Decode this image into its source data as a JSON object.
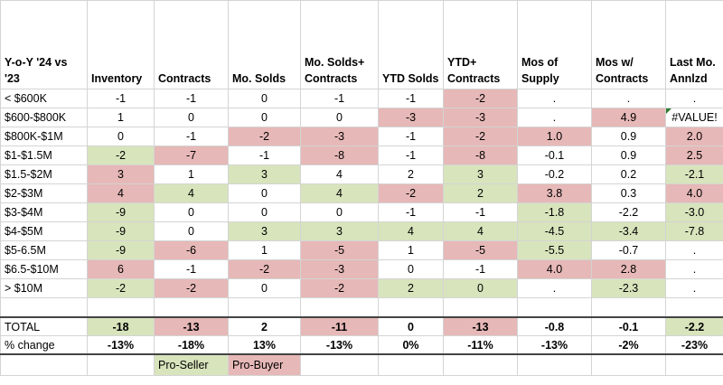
{
  "headers": [
    "Y-o-Y '24 vs '23",
    "Inventory",
    "Contracts",
    "Mo. Solds",
    "Mo. Solds+ Contracts",
    "YTD Solds",
    "YTD+ Contracts",
    "Mos of Supply",
    "Mos w/ Contracts",
    "Last Mo. Annlzd"
  ],
  "colors": {
    "pro_seller": "#d8e4bc",
    "pro_buyer": "#e6b8b7"
  },
  "rows": [
    {
      "label": "< $600K",
      "values": [
        "-1",
        "-1",
        "0",
        "-1",
        "-1",
        "-2",
        ".",
        ".",
        "."
      ],
      "shade": [
        "",
        "",
        "",
        "",
        "",
        "r",
        "",
        "",
        ""
      ]
    },
    {
      "label": "$600-$800K",
      "values": [
        "1",
        "0",
        "0",
        "0",
        "-3",
        "-3",
        ".",
        "4.9",
        "#VALUE!"
      ],
      "shade": [
        "",
        "",
        "",
        "",
        "r",
        "r",
        "",
        "r",
        ""
      ]
    },
    {
      "label": "$800K-$1M",
      "values": [
        "0",
        "-1",
        "-2",
        "-3",
        "-1",
        "-2",
        "1.0",
        "0.9",
        "2.0"
      ],
      "shade": [
        "",
        "",
        "r",
        "r",
        "",
        "r",
        "r",
        "",
        "r"
      ]
    },
    {
      "label": "$1-$1.5M",
      "values": [
        "-2",
        "-7",
        "-1",
        "-8",
        "-1",
        "-8",
        "-0.1",
        "0.9",
        "2.5"
      ],
      "shade": [
        "g",
        "r",
        "",
        "r",
        "",
        "r",
        "",
        "",
        "r"
      ]
    },
    {
      "label": "$1.5-$2M",
      "values": [
        "3",
        "1",
        "3",
        "4",
        "2",
        "3",
        "-0.2",
        "0.2",
        "-2.1"
      ],
      "shade": [
        "r",
        "",
        "g",
        "",
        "",
        "g",
        "",
        "",
        "g"
      ]
    },
    {
      "label": "$2-$3M",
      "values": [
        "4",
        "4",
        "0",
        "4",
        "-2",
        "2",
        "3.8",
        "0.3",
        "4.0"
      ],
      "shade": [
        "r",
        "g",
        "",
        "g",
        "r",
        "g",
        "r",
        "",
        "r"
      ]
    },
    {
      "label": "$3-$4M",
      "values": [
        "-9",
        "0",
        "0",
        "0",
        "-1",
        "-1",
        "-1.8",
        "-2.2",
        "-3.0"
      ],
      "shade": [
        "g",
        "",
        "",
        "",
        "",
        "",
        "g",
        "",
        "g"
      ]
    },
    {
      "label": "$4-$5M",
      "values": [
        "-9",
        "0",
        "3",
        "3",
        "4",
        "4",
        "-4.5",
        "-3.4",
        "-7.8"
      ],
      "shade": [
        "g",
        "",
        "g",
        "g",
        "g",
        "g",
        "g",
        "g",
        "g"
      ]
    },
    {
      "label": "$5-6.5M",
      "values": [
        "-9",
        "-6",
        "1",
        "-5",
        "1",
        "-5",
        "-5.5",
        "-0.7",
        "."
      ],
      "shade": [
        "g",
        "r",
        "",
        "r",
        "",
        "r",
        "g",
        "",
        ""
      ]
    },
    {
      "label": "$6.5-$10M",
      "values": [
        "6",
        "-1",
        "-2",
        "-3",
        "0",
        "-1",
        "4.0",
        "2.8",
        "."
      ],
      "shade": [
        "r",
        "",
        "r",
        "r",
        "",
        "",
        "r",
        "r",
        ""
      ]
    },
    {
      "label": "> $10M",
      "values": [
        "-2",
        "-2",
        "0",
        "-2",
        "2",
        "0",
        ".",
        "-2.3",
        "."
      ],
      "shade": [
        "g",
        "r",
        "",
        "r",
        "g",
        "g",
        "",
        "g",
        ""
      ]
    }
  ],
  "total": {
    "label": "TOTAL",
    "values": [
      "-18",
      "-13",
      "2",
      "-11",
      "0",
      "-13",
      "-0.8",
      "-0.1",
      "-2.2"
    ],
    "shade": [
      "g",
      "r",
      "",
      "r",
      "",
      "r",
      "",
      "",
      "g"
    ]
  },
  "pct": {
    "label": "% change",
    "values": [
      "-13%",
      "-18%",
      "13%",
      "-13%",
      "0%",
      "-11%",
      "-13%",
      "-2%",
      "-23%"
    ]
  },
  "legend": {
    "pro_seller": "Pro-Seller",
    "pro_buyer": "Pro-Buyer"
  }
}
